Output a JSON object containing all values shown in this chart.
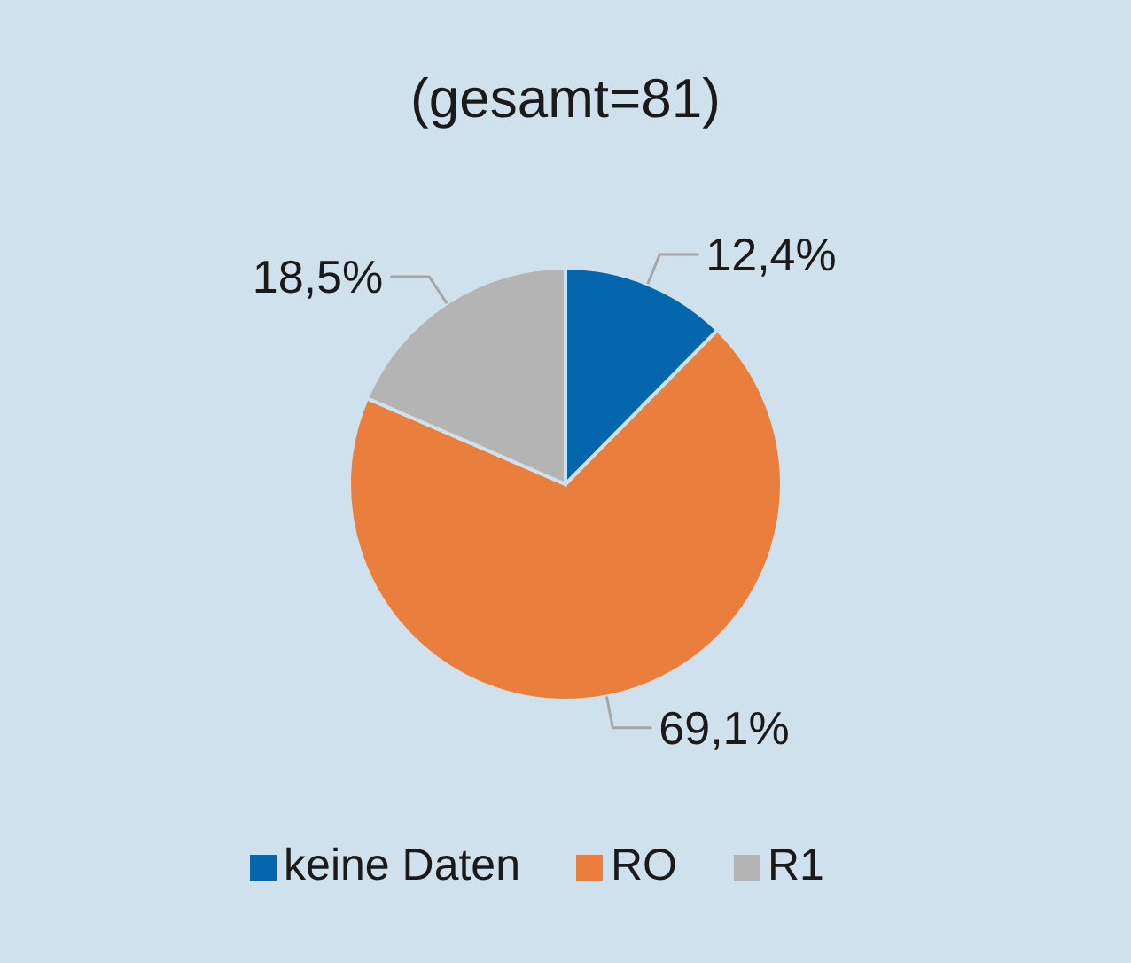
{
  "chart_data": {
    "type": "pie",
    "title": "(gesamt=81)",
    "categories": [
      "keine Daten",
      "RO",
      "R1"
    ],
    "values": [
      12.4,
      69.1,
      18.5
    ],
    "colors": [
      "#0467ae",
      "#ea7f3d",
      "#b4b4b4"
    ],
    "value_labels": [
      "12,4%",
      "69,1%",
      "18,5%"
    ],
    "legend": "bottom"
  }
}
